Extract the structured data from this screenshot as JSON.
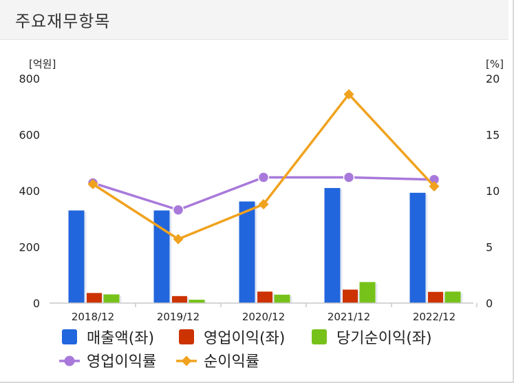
{
  "header": {
    "title": "주요재무항목"
  },
  "chart_data": {
    "type": "bar",
    "categories": [
      "2018/12",
      "2019/12",
      "2020/12",
      "2021/12",
      "2022/12"
    ],
    "y_left": {
      "unit": "[억원]",
      "ylim": [
        0,
        800
      ],
      "ticks": [
        "0",
        "200",
        "400",
        "600",
        "800"
      ]
    },
    "y_right": {
      "unit": "[%]",
      "ylim": [
        0,
        20
      ],
      "ticks": [
        "0",
        "5",
        "10",
        "15",
        "20"
      ]
    },
    "grid": false,
    "legend_position": "bottom",
    "series": [
      {
        "name": "매출액(좌)",
        "type": "bar",
        "axis": "left",
        "color": "#2266dd",
        "values": [
          330,
          330,
          362,
          410,
          393
        ]
      },
      {
        "name": "영업이익(좌)",
        "type": "bar",
        "axis": "left",
        "color": "#cc3300",
        "values": [
          36,
          25,
          41,
          48,
          40
        ]
      },
      {
        "name": "당기순이익(좌)",
        "type": "bar",
        "axis": "left",
        "color": "#77c21a",
        "values": [
          31,
          12,
          30,
          75,
          41
        ]
      },
      {
        "name": "영업이익률",
        "type": "line",
        "axis": "right",
        "color": "#a879db",
        "marker": "circle",
        "values": [
          10.7,
          8.3,
          11.2,
          11.2,
          11.0
        ]
      },
      {
        "name": "순이익률",
        "type": "line",
        "axis": "right",
        "color": "#f0a21e",
        "marker": "diamond",
        "values": [
          10.6,
          5.7,
          8.8,
          18.6,
          10.4
        ]
      }
    ]
  }
}
